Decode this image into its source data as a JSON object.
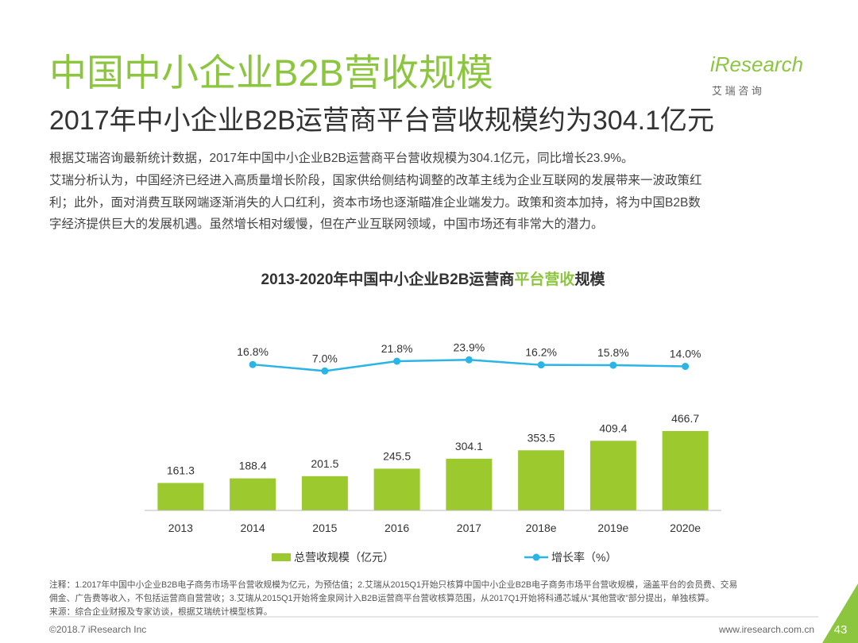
{
  "header": {
    "title": "中国中小企业B2B营收规模",
    "subtitle": "2017年中小企业B2B运营商平台营收规模约为304.1亿元",
    "logo": "iResearch",
    "logo_sub": "艾 瑞 咨 询"
  },
  "body": [
    "根据艾瑞咨询最新统计数据，2017年中国中小企业B2B运营商平台营收规模为304.1亿元，同比增长23.9%。",
    "艾瑞分析认为，中国经济已经进入高质量增长阶段，国家供给侧结构调整的改革主线为企业互联网的发展带来一波政策红",
    "利；此外，面对消费互联网端逐渐消失的人口红利，资本市场也逐渐瞄准企业端发力。政策和资本加持，将为中国B2B数",
    "字经济提供巨大的发展机遇。虽然增长相对缓慢，但在产业互联网领域，中国市场还有非常大的潜力。"
  ],
  "chart_data": {
    "type": "bar",
    "title": [
      "2013-2020年中国中小企业B2B运营商",
      "平台营收",
      "规模"
    ],
    "categories": [
      "2013",
      "2014",
      "2015",
      "2016",
      "2017",
      "2018e",
      "2019e",
      "2020e"
    ],
    "series": [
      {
        "name": "总营收规模（亿元）",
        "color": "#9bc92e",
        "values": [
          161.3,
          188.4,
          201.5,
          245.5,
          304.1,
          353.5,
          409.4,
          466.7
        ]
      },
      {
        "name": "增长率（%）",
        "color": "#2ab5e6",
        "axis": "y2",
        "values": [
          null,
          16.8,
          7.0,
          21.8,
          23.9,
          16.2,
          15.8,
          14.0
        ],
        "value_labels": [
          null,
          "16.8%",
          "7.0%",
          "21.8%",
          "23.9%",
          "16.2%",
          "15.8%",
          "14.0%"
        ]
      }
    ],
    "ylim": [
      0,
      1400
    ],
    "y2lim": [
      -205,
      157
    ]
  },
  "notes": [
    "注释：1.2017年中国中小企业B2B电子商务市场平台营收规模为亿元，为预估值；2.艾瑞从2015Q1开始只核算中国中小企业B2B电子商务市场平台营收规模，涵盖平台的会员费、交易",
    "佣金、广告费等收入，不包括运营商自营营收；3.艾瑞从2015Q1开始将金泉网计入B2B运营商平台营收核算范围，从2017Q1开始将科通芯城从“其他营收”部分提出，单独核算。",
    "来源：综合企业财报及专家访谈，根据艾瑞统计模型核算。"
  ],
  "footer": {
    "copyright": "©2018.7 iResearch Inc",
    "url": "www.iresearch.com.cn",
    "page": "43"
  }
}
